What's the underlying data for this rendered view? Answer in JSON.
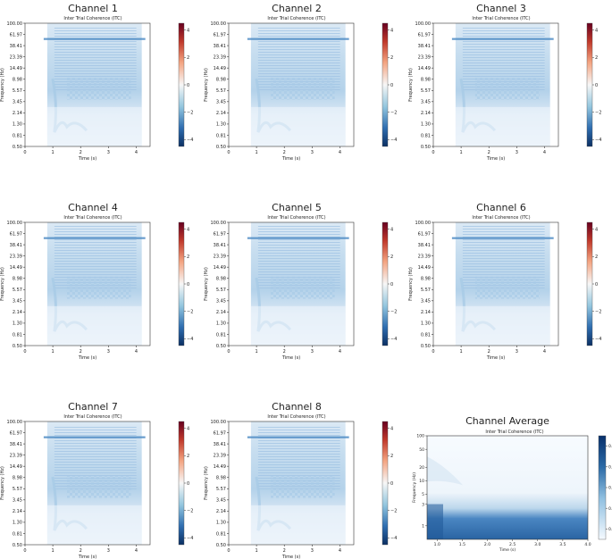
{
  "colors": {
    "heat_low": "#1f4e8f",
    "heat_mid": "#f7f7f7",
    "heat_high": "#8e1426",
    "itc_light": "#d9e8f5",
    "itc_dark": "#2b6aa6"
  },
  "chart_data": [
    {
      "type": "heatmap",
      "id": "ch1",
      "title": "Channel 1",
      "subtitle": "Inter Trial Coherence (ITC)",
      "xlabel": "Time (s)",
      "ylabel": "Frequency (Hz)",
      "x_ticks": [
        "0",
        "1",
        "2",
        "3",
        "4"
      ],
      "xlim": [
        0,
        4.5
      ],
      "data_x_range": [
        0.8,
        4.2
      ],
      "y_ticks": [
        "0.50",
        "0.81",
        "1.30",
        "2.14",
        "3.45",
        "5.57",
        "8.98",
        "14.49",
        "23.39",
        "38.41",
        "61.97",
        "100.00"
      ],
      "colorbar": {
        "ticks": [
          "4",
          "2",
          "0",
          "−2",
          "−4"
        ],
        "range": [
          -4.5,
          4.5
        ]
      }
    },
    {
      "type": "heatmap",
      "id": "ch2",
      "title": "Channel 2",
      "subtitle": "Inter Trial Coherence (ITC)",
      "xlabel": "Time (s)",
      "ylabel": "Frequency (Hz)",
      "x_ticks": [
        "0",
        "1",
        "2",
        "3",
        "4"
      ],
      "xlim": [
        0,
        4.5
      ],
      "data_x_range": [
        0.8,
        4.2
      ],
      "y_ticks": [
        "0.50",
        "0.81",
        "1.30",
        "2.14",
        "3.45",
        "5.57",
        "8.98",
        "14.49",
        "23.39",
        "38.41",
        "61.97",
        "100.00"
      ],
      "colorbar": {
        "ticks": [
          "4",
          "2",
          "0",
          "−2",
          "−4"
        ],
        "range": [
          -4.5,
          4.5
        ]
      }
    },
    {
      "type": "heatmap",
      "id": "ch3",
      "title": "Channel 3",
      "subtitle": "Inter Trial Coherence (ITC)",
      "xlabel": "Time (s)",
      "ylabel": "Frequency (Hz)",
      "x_ticks": [
        "0",
        "1",
        "2",
        "3",
        "4"
      ],
      "xlim": [
        0,
        4.5
      ],
      "data_x_range": [
        0.8,
        4.2
      ],
      "y_ticks": [
        "0.50",
        "0.81",
        "1.30",
        "2.14",
        "3.45",
        "5.57",
        "8.98",
        "14.49",
        "23.39",
        "38.41",
        "61.97",
        "100.00"
      ],
      "colorbar": {
        "ticks": [
          "4",
          "2",
          "0",
          "−2",
          "−4"
        ],
        "range": [
          -4.5,
          4.5
        ]
      }
    },
    {
      "type": "heatmap",
      "id": "ch4",
      "title": "Channel 4",
      "subtitle": "Inter Trial Coherence (ITC)",
      "xlabel": "Time (s)",
      "ylabel": "Frequency (Hz)",
      "x_ticks": [
        "0",
        "1",
        "2",
        "3",
        "4"
      ],
      "xlim": [
        0,
        4.5
      ],
      "data_x_range": [
        0.8,
        4.2
      ],
      "y_ticks": [
        "0.50",
        "0.81",
        "1.30",
        "2.14",
        "3.45",
        "5.57",
        "8.98",
        "14.49",
        "23.39",
        "38.41",
        "61.97",
        "100.00"
      ],
      "colorbar": {
        "ticks": [
          "4",
          "2",
          "0",
          "−2",
          "−4"
        ],
        "range": [
          -4.5,
          4.5
        ]
      }
    },
    {
      "type": "heatmap",
      "id": "ch5",
      "title": "Channel 5",
      "subtitle": "Inter Trial Coherence (ITC)",
      "xlabel": "Time (s)",
      "ylabel": "Frequency (Hz)",
      "x_ticks": [
        "0",
        "1",
        "2",
        "3",
        "4"
      ],
      "xlim": [
        0,
        4.5
      ],
      "data_x_range": [
        0.8,
        4.2
      ],
      "y_ticks": [
        "0.50",
        "0.81",
        "1.30",
        "2.14",
        "3.45",
        "5.57",
        "8.98",
        "14.49",
        "23.39",
        "38.41",
        "61.97",
        "100.00"
      ],
      "colorbar": {
        "ticks": [
          "4",
          "2",
          "0",
          "−2",
          "−4"
        ],
        "range": [
          -4.5,
          4.5
        ]
      }
    },
    {
      "type": "heatmap",
      "id": "ch6",
      "title": "Channel 6",
      "subtitle": "Inter Trial Coherence (ITC)",
      "xlabel": "Time (s)",
      "ylabel": "Frequency (Hz)",
      "x_ticks": [
        "0",
        "1",
        "2",
        "3",
        "4"
      ],
      "xlim": [
        0,
        4.5
      ],
      "data_x_range": [
        0.8,
        4.2
      ],
      "y_ticks": [
        "0.50",
        "0.81",
        "1.30",
        "2.14",
        "3.45",
        "5.57",
        "8.98",
        "14.49",
        "23.39",
        "38.41",
        "61.97",
        "100.00"
      ],
      "colorbar": {
        "ticks": [
          "4",
          "2",
          "0",
          "−2",
          "−4"
        ],
        "range": [
          -4.5,
          4.5
        ]
      }
    },
    {
      "type": "heatmap",
      "id": "ch7",
      "title": "Channel 7",
      "subtitle": "Inter Trial Coherence (ITC)",
      "xlabel": "Time (s)",
      "ylabel": "Frequency (Hz)",
      "x_ticks": [
        "0",
        "1",
        "2",
        "3",
        "4"
      ],
      "xlim": [
        0,
        4.5
      ],
      "data_x_range": [
        0.8,
        4.2
      ],
      "y_ticks": [
        "0.50",
        "0.81",
        "1.30",
        "2.14",
        "3.45",
        "5.57",
        "8.98",
        "14.49",
        "23.39",
        "38.41",
        "61.97",
        "100.00"
      ],
      "colorbar": {
        "ticks": [
          "4",
          "2",
          "0",
          "−2",
          "−4"
        ],
        "range": [
          -4.5,
          4.5
        ]
      }
    },
    {
      "type": "heatmap",
      "id": "ch8",
      "title": "Channel 8",
      "subtitle": "Inter Trial Coherence (ITC)",
      "xlabel": "Time (s)",
      "ylabel": "Frequency (Hz)",
      "x_ticks": [
        "0",
        "1",
        "2",
        "3",
        "4"
      ],
      "xlim": [
        0,
        4.5
      ],
      "data_x_range": [
        0.8,
        4.2
      ],
      "y_ticks": [
        "0.50",
        "0.81",
        "1.30",
        "2.14",
        "3.45",
        "5.57",
        "8.98",
        "14.49",
        "23.39",
        "38.41",
        "61.97",
        "100.00"
      ],
      "colorbar": {
        "ticks": [
          "4",
          "2",
          "0",
          "−2",
          "−4"
        ],
        "range": [
          -4.5,
          4.5
        ]
      }
    },
    {
      "type": "heatmap",
      "id": "avg",
      "title": "Channel Average",
      "subtitle": "Inter Trial Coherence (ITC)",
      "xlabel": "Time (s)",
      "ylabel": "Frequency (Hz)",
      "x_ticks": [
        "1.0",
        "1.5",
        "2.0",
        "2.5",
        "3.0",
        "3.5",
        "4.0"
      ],
      "xlim": [
        0.8,
        4.0
      ],
      "y_ticks": [
        "1",
        "3",
        "5",
        "10",
        "20",
        "50",
        "100"
      ],
      "colorbar": {
        "ticks": [
          "0.5",
          "0.4",
          "0.3",
          "0.2",
          "0.1"
        ],
        "range": [
          0.05,
          0.55
        ]
      }
    }
  ]
}
